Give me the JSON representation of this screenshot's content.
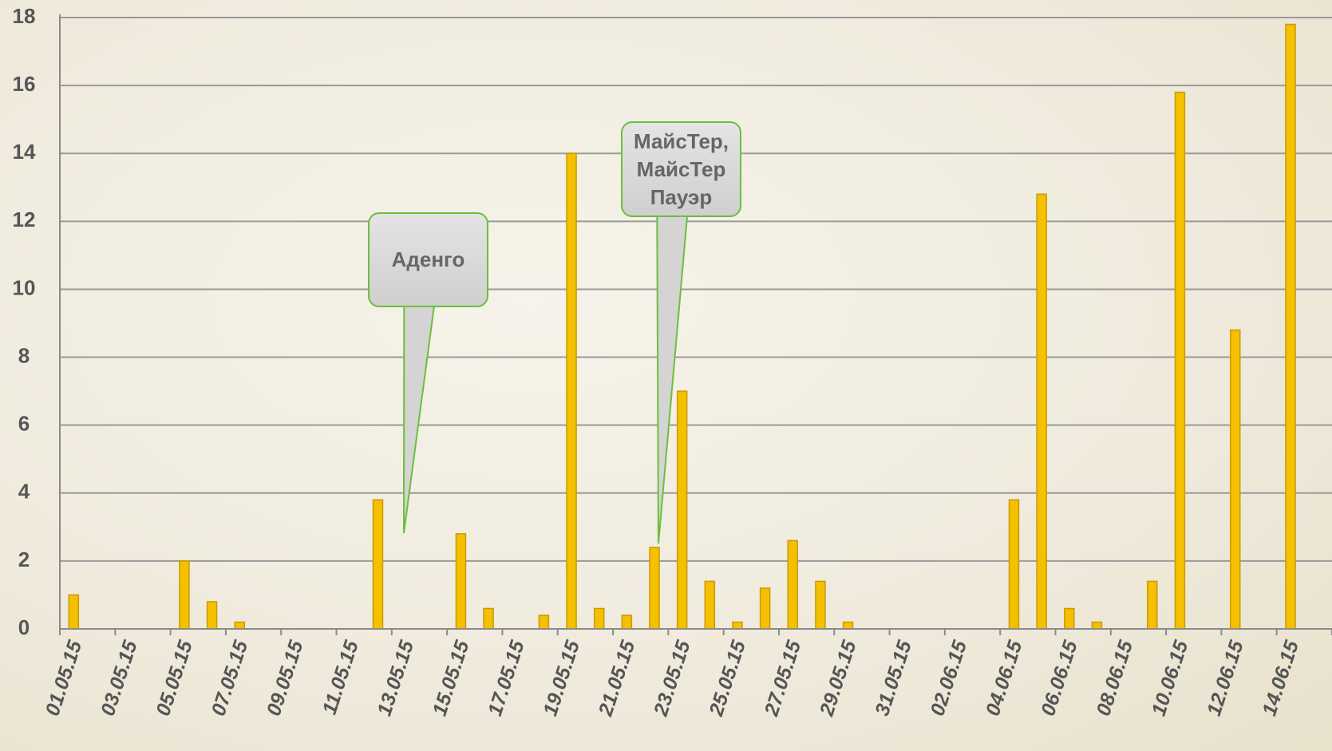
{
  "chart_data": {
    "type": "bar",
    "categories": [
      "01.05.15",
      null,
      "03.05.15",
      null,
      "05.05.15",
      null,
      "07.05.15",
      null,
      "09.05.15",
      null,
      "11.05.15",
      null,
      "13.05.15",
      null,
      "15.05.15",
      null,
      "17.05.15",
      null,
      "19.05.15",
      null,
      "21.05.15",
      null,
      "23.05.15",
      null,
      "25.05.15",
      null,
      "27.05.15",
      null,
      "29.05.15",
      null,
      "31.05.15",
      null,
      "02.06.15",
      null,
      "04.06.15",
      null,
      "06.06.15",
      null,
      "08.06.15",
      null,
      "10.06.15",
      null,
      "12.06.15",
      null,
      "14.06.15",
      null
    ],
    "values": [
      1.0,
      0,
      0,
      0,
      2.0,
      0.8,
      0.2,
      0,
      0,
      0,
      0,
      3.8,
      0,
      0,
      2.8,
      0.6,
      0,
      0.4,
      14,
      0.6,
      0.4,
      2.4,
      7,
      1.4,
      0.2,
      1.2,
      2.6,
      1.4,
      0.2,
      0,
      0,
      0,
      0,
      0,
      3.8,
      12.8,
      0.6,
      0.2,
      0,
      1.4,
      15.8,
      0,
      8.8,
      0,
      17.8,
      0
    ],
    "color": "#f5c000",
    "ylim": [
      0,
      18
    ],
    "yticks": [
      0,
      2,
      4,
      6,
      8,
      10,
      12,
      14,
      16,
      18
    ],
    "grid": true,
    "annotations": [
      {
        "text": "Аденго"
      },
      {
        "text": "МайсТер, МайсТер Пауэр"
      }
    ]
  }
}
